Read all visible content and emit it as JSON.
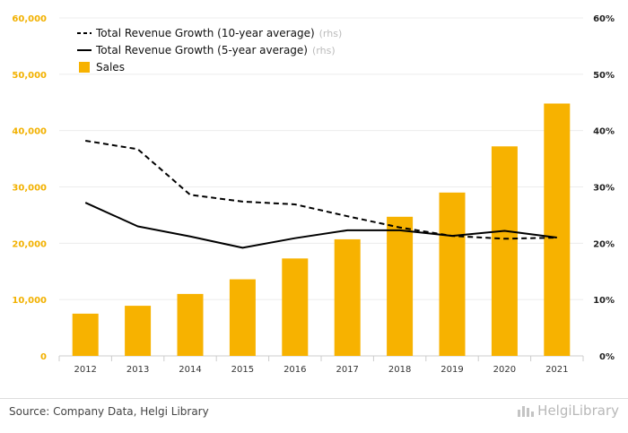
{
  "chart_data": {
    "type": "bar",
    "categories": [
      "2012",
      "2013",
      "2014",
      "2015",
      "2016",
      "2017",
      "2018",
      "2019",
      "2020",
      "2021"
    ],
    "series": [
      {
        "name": "Sales",
        "kind": "bar",
        "axis": "left",
        "color": "#f7b200",
        "values": [
          7500,
          8900,
          11000,
          13600,
          17300,
          20700,
          24700,
          29000,
          37200,
          44800
        ]
      },
      {
        "name": "Total Revenue Growth (10-year average)",
        "suffix": "(rhs)",
        "kind": "line",
        "style": "dashed",
        "axis": "right",
        "color": "#000000",
        "values": [
          0.382,
          0.367,
          0.286,
          0.274,
          0.269,
          0.248,
          0.228,
          0.213,
          0.208,
          0.21
        ]
      },
      {
        "name": "Total Revenue Growth (5-year average)",
        "suffix": "(rhs)",
        "kind": "line",
        "style": "solid",
        "axis": "right",
        "color": "#000000",
        "values": [
          0.272,
          0.23,
          0.212,
          0.192,
          0.209,
          0.223,
          0.223,
          0.213,
          0.222,
          0.21
        ]
      }
    ],
    "y_left": {
      "ylim": [
        0,
        60000
      ],
      "ticks": [
        "0",
        "10,000",
        "20,000",
        "30,000",
        "40,000",
        "50,000",
        "60,000"
      ]
    },
    "y_right": {
      "ylim": [
        0,
        0.6
      ],
      "ticks": [
        "0%",
        "10%",
        "20%",
        "30%",
        "40%",
        "50%",
        "60%"
      ]
    },
    "legend_order": [
      1,
      2,
      0
    ],
    "legend_position": "top-left",
    "grid": true
  },
  "footer": {
    "source": "Source: Company Data, Helgi Library",
    "logo": "HelgiLibrary"
  }
}
